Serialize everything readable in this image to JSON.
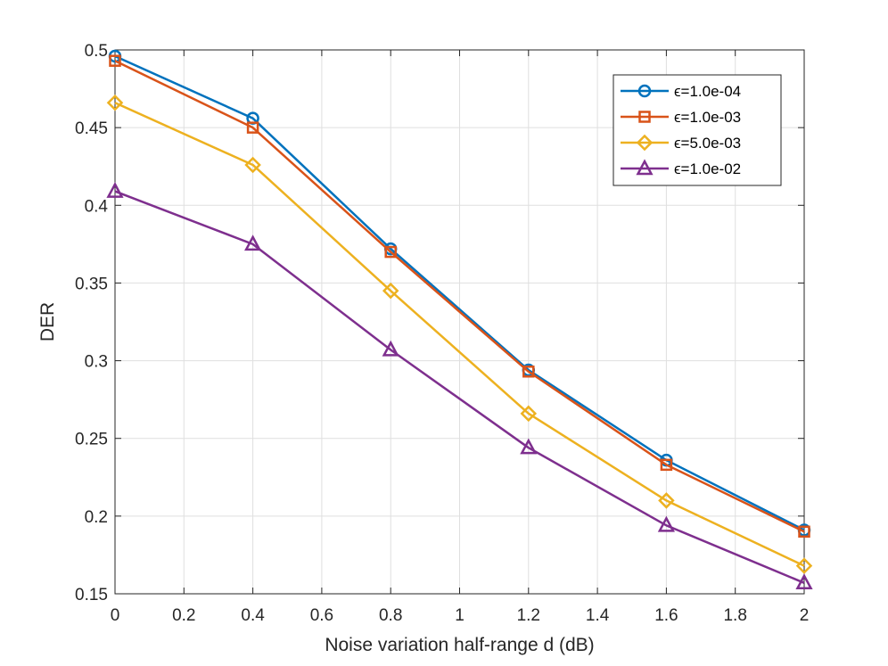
{
  "chart_data": {
    "type": "line",
    "title": "",
    "xlabel": "Noise variation half-range d (dB)",
    "ylabel": "DER",
    "xlim": [
      0,
      2
    ],
    "ylim": [
      0.15,
      0.5
    ],
    "xticks": [
      0,
      0.2,
      0.4,
      0.6,
      0.8,
      1,
      1.2,
      1.4,
      1.6,
      1.8,
      2
    ],
    "xtick_labels": [
      "0",
      "0.2",
      "0.4",
      "0.6",
      "0.8",
      "1",
      "1.2",
      "1.4",
      "1.6",
      "1.8",
      "2"
    ],
    "yticks": [
      0.15,
      0.2,
      0.25,
      0.3,
      0.35,
      0.4,
      0.45,
      0.5
    ],
    "ytick_labels": [
      "0.15",
      "0.2",
      "0.25",
      "0.3",
      "0.35",
      "0.4",
      "0.45",
      "0.5"
    ],
    "grid": true,
    "legend_position": "top-right",
    "x": [
      0,
      0.4,
      0.8,
      1.2,
      1.6,
      2
    ],
    "series": [
      {
        "name": "ϵ=1.0e-04",
        "marker": "circle",
        "color": "#0072BD",
        "values": [
          0.496,
          0.456,
          0.372,
          0.294,
          0.236,
          0.191
        ]
      },
      {
        "name": "ϵ=1.0e-03",
        "marker": "square",
        "color": "#D95319",
        "values": [
          0.493,
          0.45,
          0.37,
          0.293,
          0.233,
          0.19
        ]
      },
      {
        "name": "ϵ=5.0e-03",
        "marker": "diamond",
        "color": "#EDB120",
        "values": [
          0.466,
          0.426,
          0.345,
          0.266,
          0.21,
          0.168
        ]
      },
      {
        "name": "ϵ=1.0e-02",
        "marker": "triangle",
        "color": "#7E2F8E",
        "values": [
          0.409,
          0.375,
          0.307,
          0.244,
          0.194,
          0.157
        ]
      }
    ]
  }
}
